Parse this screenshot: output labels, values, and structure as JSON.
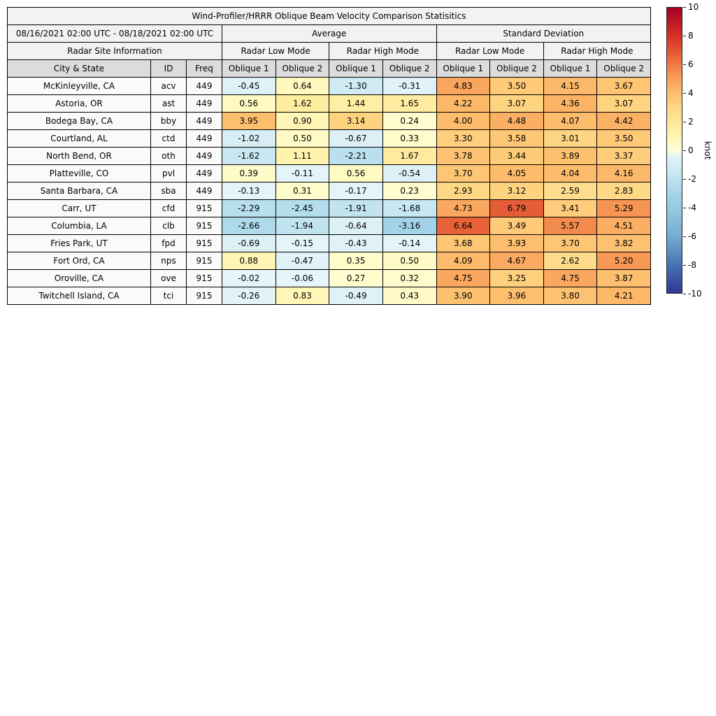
{
  "chart_data": {
    "type": "heatmap",
    "title": "Wind-Profiler/HRRR Oblique Beam Velocity Comparison Statisitics",
    "date_range": "08/16/2021 02:00 UTC - 08/18/2021 02:00 UTC",
    "groups": [
      "Average",
      "Standard Deviation"
    ],
    "site_info_label": "Radar Site Information",
    "mode_labels": [
      "Radar Low Mode",
      "Radar High Mode",
      "Radar Low Mode",
      "Radar High Mode"
    ],
    "columns": [
      "City & State",
      "ID",
      "Freq",
      "Oblique 1",
      "Oblique 2",
      "Oblique 1",
      "Oblique 2",
      "Oblique 1",
      "Oblique 2",
      "Oblique 1",
      "Oblique 2"
    ],
    "rows": [
      {
        "city": "McKinleyville, CA",
        "id": "acv",
        "freq": 449,
        "values": [
          -0.45,
          0.64,
          -1.3,
          -0.31,
          4.83,
          3.5,
          4.15,
          3.67
        ]
      },
      {
        "city": "Astoria, OR",
        "id": "ast",
        "freq": 449,
        "values": [
          0.56,
          1.62,
          1.44,
          1.65,
          4.22,
          3.07,
          4.36,
          3.07
        ]
      },
      {
        "city": "Bodega Bay, CA",
        "id": "bby",
        "freq": 449,
        "values": [
          3.95,
          0.9,
          3.14,
          0.24,
          4.0,
          4.48,
          4.07,
          4.42
        ]
      },
      {
        "city": "Courtland, AL",
        "id": "ctd",
        "freq": 449,
        "values": [
          -1.02,
          0.5,
          -0.67,
          0.33,
          3.3,
          3.58,
          3.01,
          3.5
        ]
      },
      {
        "city": "North Bend, OR",
        "id": "oth",
        "freq": 449,
        "values": [
          -1.62,
          1.11,
          -2.21,
          1.67,
          3.78,
          3.44,
          3.89,
          3.37
        ]
      },
      {
        "city": "Platteville, CO",
        "id": "pvl",
        "freq": 449,
        "values": [
          0.39,
          -0.11,
          0.56,
          -0.54,
          3.7,
          4.05,
          4.04,
          4.16
        ]
      },
      {
        "city": "Santa Barbara, CA",
        "id": "sba",
        "freq": 449,
        "values": [
          -0.13,
          0.31,
          -0.17,
          0.23,
          2.93,
          3.12,
          2.59,
          2.83
        ]
      },
      {
        "city": "Carr, UT",
        "id": "cfd",
        "freq": 915,
        "values": [
          -2.29,
          -2.45,
          -1.91,
          -1.68,
          4.73,
          6.79,
          3.41,
          5.29
        ]
      },
      {
        "city": "Columbia, LA",
        "id": "clb",
        "freq": 915,
        "values": [
          -2.66,
          -1.94,
          -0.64,
          -3.16,
          6.64,
          3.49,
          5.57,
          4.51
        ]
      },
      {
        "city": "Fries Park, UT",
        "id": "fpd",
        "freq": 915,
        "values": [
          -0.69,
          -0.15,
          -0.43,
          -0.14,
          3.68,
          3.93,
          3.7,
          3.82
        ]
      },
      {
        "city": "Fort Ord, CA",
        "id": "nps",
        "freq": 915,
        "values": [
          0.88,
          -0.47,
          0.35,
          0.5,
          4.09,
          4.67,
          2.62,
          5.2
        ]
      },
      {
        "city": "Oroville, CA",
        "id": "ove",
        "freq": 915,
        "values": [
          -0.02,
          -0.06,
          0.27,
          0.32,
          4.75,
          3.25,
          4.75,
          3.87
        ]
      },
      {
        "city": "Twitchell Island, CA",
        "id": "tci",
        "freq": 915,
        "values": [
          -0.26,
          0.83,
          -0.49,
          0.43,
          3.9,
          3.96,
          3.8,
          4.21
        ]
      }
    ],
    "colorbar": {
      "label": "knot",
      "min": -10,
      "max": 10,
      "ticks": [
        10,
        8,
        6,
        4,
        2,
        0,
        -2,
        -4,
        -6,
        -8,
        -10
      ]
    },
    "colormap": {
      "anchors": [
        [
          -10,
          "#313695"
        ],
        [
          -8,
          "#4575b4"
        ],
        [
          -6,
          "#74add1"
        ],
        [
          -4,
          "#93cbe1"
        ],
        [
          -3,
          "#a6d5e9"
        ],
        [
          -2,
          "#bfe3f0"
        ],
        [
          -1,
          "#d7eef5"
        ],
        [
          -0.01,
          "#e6f5f9"
        ],
        [
          0,
          "#ffffd9"
        ],
        [
          1,
          "#fff4b0"
        ],
        [
          2,
          "#fee798"
        ],
        [
          3,
          "#fed683"
        ],
        [
          4,
          "#fdbd6d"
        ],
        [
          5,
          "#f9a05a"
        ],
        [
          6,
          "#ef7a43"
        ],
        [
          7,
          "#e25532"
        ],
        [
          8,
          "#d73027"
        ],
        [
          10,
          "#a50026"
        ]
      ]
    }
  }
}
